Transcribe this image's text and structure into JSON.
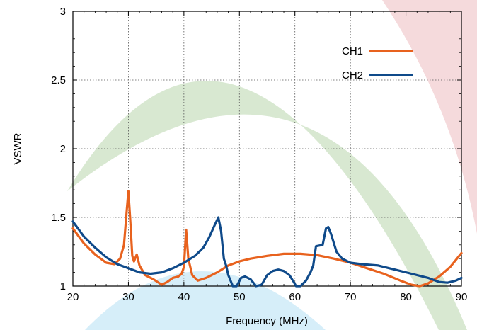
{
  "chart_data": {
    "type": "line",
    "xlabel": "Frequency (MHz)",
    "ylabel": "VSWR",
    "xlim": [
      20,
      90
    ],
    "ylim": [
      1,
      3
    ],
    "x_ticks": [
      "20",
      "30",
      "40",
      "50",
      "60",
      "70",
      "80",
      "90"
    ],
    "y_ticks": [
      "1",
      "1.5",
      "2",
      "2.5",
      "3"
    ],
    "grid": true,
    "legend_position": "top-right",
    "series": [
      {
        "name": "CH1",
        "color": "#e8621e",
        "points": [
          [
            20,
            1.42
          ],
          [
            22,
            1.31
          ],
          [
            24,
            1.23
          ],
          [
            26,
            1.17
          ],
          [
            27.5,
            1.16
          ],
          [
            28.5,
            1.2
          ],
          [
            29.2,
            1.3
          ],
          [
            29.7,
            1.55
          ],
          [
            30,
            1.69
          ],
          [
            30.3,
            1.5
          ],
          [
            30.7,
            1.22
          ],
          [
            31,
            1.18
          ],
          [
            31.5,
            1.23
          ],
          [
            32,
            1.15
          ],
          [
            33,
            1.08
          ],
          [
            34.5,
            1.05
          ],
          [
            36,
            1.01
          ],
          [
            37,
            1.03
          ],
          [
            38,
            1.06
          ],
          [
            39,
            1.07
          ],
          [
            39.6,
            1.09
          ],
          [
            40,
            1.14
          ],
          [
            40.4,
            1.41
          ],
          [
            40.8,
            1.2
          ],
          [
            41.5,
            1.08
          ],
          [
            42.5,
            1.04
          ],
          [
            44,
            1.06
          ],
          [
            46,
            1.1
          ],
          [
            48,
            1.15
          ],
          [
            50,
            1.18
          ],
          [
            52,
            1.2
          ],
          [
            55,
            1.22
          ],
          [
            58,
            1.235
          ],
          [
            61,
            1.235
          ],
          [
            64,
            1.225
          ],
          [
            67,
            1.2
          ],
          [
            70,
            1.17
          ],
          [
            73,
            1.13
          ],
          [
            76,
            1.09
          ],
          [
            79,
            1.04
          ],
          [
            81,
            1.01
          ],
          [
            82.5,
            1.0
          ],
          [
            84,
            1.02
          ],
          [
            86,
            1.07
          ],
          [
            88,
            1.14
          ],
          [
            90,
            1.24
          ]
        ]
      },
      {
        "name": "CH2",
        "color": "#0f4a8a",
        "points": [
          [
            20,
            1.47
          ],
          [
            22,
            1.36
          ],
          [
            24,
            1.28
          ],
          [
            26,
            1.21
          ],
          [
            28,
            1.16
          ],
          [
            30,
            1.13
          ],
          [
            32,
            1.1
          ],
          [
            34,
            1.09
          ],
          [
            36,
            1.1
          ],
          [
            38,
            1.13
          ],
          [
            40,
            1.17
          ],
          [
            42,
            1.22
          ],
          [
            43.5,
            1.28
          ],
          [
            44.5,
            1.35
          ],
          [
            45.5,
            1.44
          ],
          [
            46.2,
            1.5
          ],
          [
            46.7,
            1.4
          ],
          [
            47.2,
            1.2
          ],
          [
            47.6,
            1.15
          ],
          [
            48,
            1.08
          ],
          [
            48.3,
            1.05
          ],
          [
            48.8,
            1.0
          ],
          [
            49.5,
            1.0
          ],
          [
            50.3,
            1.06
          ],
          [
            51,
            1.07
          ],
          [
            52,
            1.05
          ],
          [
            53,
            1.0
          ],
          [
            54,
            1.01
          ],
          [
            55,
            1.08
          ],
          [
            56,
            1.11
          ],
          [
            57,
            1.12
          ],
          [
            58,
            1.11
          ],
          [
            59,
            1.08
          ],
          [
            59.8,
            1.03
          ],
          [
            60.2,
            1.0
          ],
          [
            61,
            1.0
          ],
          [
            62,
            1.04
          ],
          [
            62.8,
            1.1
          ],
          [
            63.3,
            1.15
          ],
          [
            63.8,
            1.29
          ],
          [
            65,
            1.3
          ],
          [
            65.6,
            1.42
          ],
          [
            66,
            1.43
          ],
          [
            66.5,
            1.38
          ],
          [
            67.5,
            1.25
          ],
          [
            68.5,
            1.2
          ],
          [
            70,
            1.17
          ],
          [
            72,
            1.16
          ],
          [
            75,
            1.15
          ],
          [
            78,
            1.12
          ],
          [
            81,
            1.09
          ],
          [
            84,
            1.06
          ],
          [
            86,
            1.03
          ],
          [
            87.5,
            1.025
          ],
          [
            89,
            1.04
          ],
          [
            90,
            1.06
          ]
        ]
      }
    ]
  }
}
